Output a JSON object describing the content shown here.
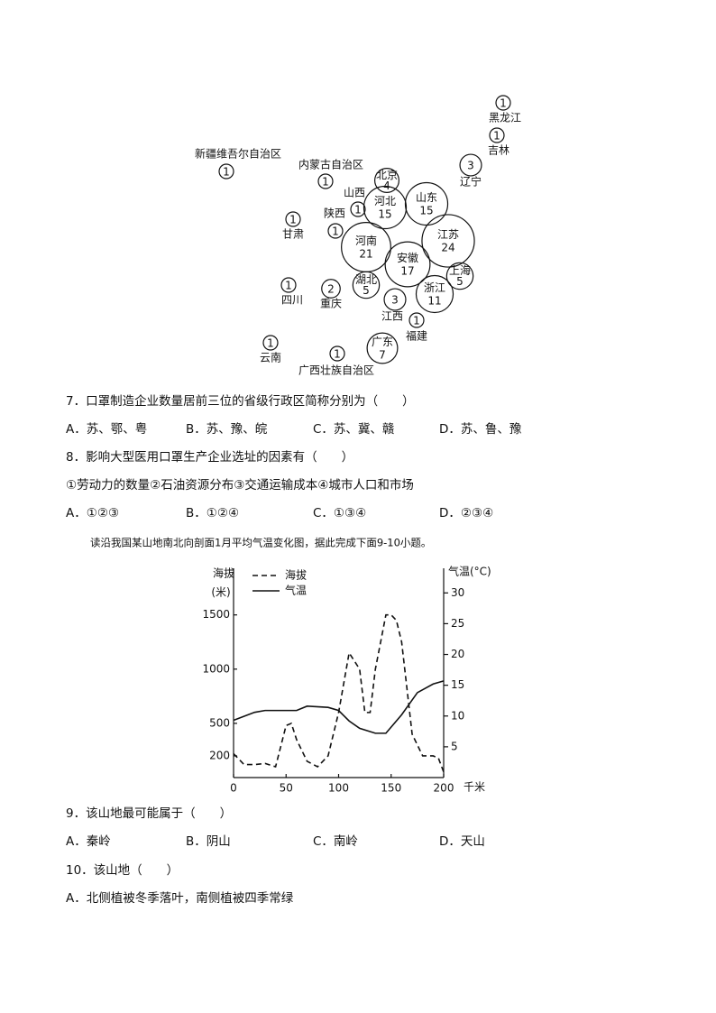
{
  "map": {
    "nodes": [
      {
        "name": "黑龙江",
        "value": 1
      },
      {
        "name": "吉林",
        "value": 1
      },
      {
        "name": "新疆维吾尔自治区",
        "value": 1
      },
      {
        "name": "内蒙古自治区",
        "value": 1
      },
      {
        "name": "辽宁",
        "value": 3
      },
      {
        "name": "北京",
        "value": 4
      },
      {
        "name": "山西",
        "value": 1
      },
      {
        "name": "河北",
        "value": 15
      },
      {
        "name": "山东",
        "value": 15
      },
      {
        "name": "陕西",
        "value": 1
      },
      {
        "name": "甘肃",
        "value": 1
      },
      {
        "name": "江苏",
        "value": 24
      },
      {
        "name": "河南",
        "value": 21
      },
      {
        "name": "安徽",
        "value": 17
      },
      {
        "name": "上海",
        "value": 5
      },
      {
        "name": "湖北",
        "value": 5
      },
      {
        "name": "浙江",
        "value": 11
      },
      {
        "name": "四川",
        "value": 1
      },
      {
        "name": "重庆",
        "value": 2
      },
      {
        "name": "江西",
        "value": 3
      },
      {
        "name": "福建",
        "value": 1
      },
      {
        "name": "云南",
        "value": 1
      },
      {
        "name": "广东",
        "value": 7
      },
      {
        "name": "广西壮族自治区",
        "value": 1
      }
    ]
  },
  "questions": [
    {
      "stem": "7．口罩制造企业数量居前三位的省级行政区简称分别为（　　）",
      "options": [
        "A．苏、鄂、粤",
        "B．苏、豫、皖",
        "C．苏、冀、赣",
        "D．苏、鲁、豫"
      ]
    },
    {
      "stem": "8．影响大型医用口罩生产企业选址的因素有（　　）",
      "statements": "①劳动力的数量②石油资源分布③交通运输成本④城市人口和市场",
      "options": [
        "A．①②③",
        "B．①②④",
        "C．①③④",
        "D．②③④"
      ]
    }
  ],
  "chart_intro": "读沿我国某山地南北向剖面1月平均气温变化图，据此完成下面9-10小题。",
  "chart_data": {
    "type": "line",
    "y_label": "海拔",
    "y_unit": "(米)",
    "y2_label": "气温(°C)",
    "x_label": "千米",
    "xlim": [
      0,
      200
    ],
    "xticks": [
      0,
      50,
      100,
      150,
      200
    ],
    "ylim": [
      0,
      1930
    ],
    "yticks": [
      200,
      500,
      1000,
      1500
    ],
    "y2lim": [
      0,
      34
    ],
    "y2ticks": [
      5,
      10,
      15,
      20,
      25,
      30
    ],
    "series": [
      {
        "name": "海拔",
        "color": "#111111",
        "dash": true,
        "x": [
          0,
          10,
          20,
          30,
          40,
          50,
          55,
          60,
          70,
          80,
          90,
          100,
          110,
          120,
          125,
          130,
          135,
          140,
          145,
          150,
          155,
          160,
          170,
          180,
          190,
          195,
          200
        ],
        "values": [
          220,
          120,
          120,
          130,
          100,
          480,
          500,
          350,
          150,
          100,
          200,
          600,
          1150,
          1000,
          600,
          600,
          1000,
          1250,
          1500,
          1500,
          1450,
          1250,
          400,
          200,
          200,
          180,
          50
        ]
      },
      {
        "name": "气温",
        "color": "#111111",
        "dash": false,
        "axis": "y2",
        "x": [
          0,
          20,
          30,
          60,
          70,
          90,
          100,
          110,
          120,
          135,
          145,
          160,
          175,
          190,
          200
        ],
        "values": [
          9.3,
          10.6,
          10.9,
          10.9,
          11.6,
          11.4,
          10.9,
          9.2,
          8.0,
          7.2,
          7.2,
          10.2,
          13.8,
          15.2,
          15.7
        ]
      }
    ]
  },
  "questions2": [
    {
      "stem": "9．该山地最可能属于（　　）",
      "options": [
        "A．秦岭",
        "B．阴山",
        "C．南岭",
        "D．天山"
      ]
    },
    {
      "stem": "10．该山地（　　）",
      "options": [
        "A．北侧植被冬季落叶，南侧植被四季常绿"
      ]
    }
  ]
}
